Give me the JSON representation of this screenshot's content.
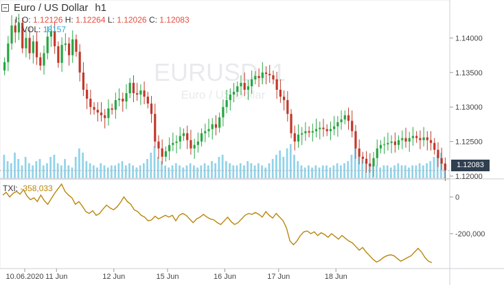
{
  "header": {
    "symbol_title": "Euro / US Dollar",
    "interval": "h1",
    "open_label": "O:",
    "open_value": "1.12126",
    "high_label": "H:",
    "high_value": "1.12264",
    "low_label": "L:",
    "low_value": "1.12026",
    "close_label": "C:",
    "close_value": "1.12083",
    "prefix": "I:",
    "volume_label": "VOL:",
    "volume_value": "18157"
  },
  "watermark": {
    "symbol": "EURUSD, 1",
    "name": "Euro / US Dollar"
  },
  "current_price_tag": "1.12083",
  "indicator": {
    "name": "TXI:",
    "value": "-358,033"
  },
  "colors": {
    "up": "#26a641",
    "down": "#c0392b",
    "volume": "#8fd3ea",
    "txi_line": "#b8860b",
    "price_tag_bg": "#2f3f4f"
  },
  "chart_data": [
    {
      "type": "candlestick",
      "title": "Euro / US Dollar, h1",
      "price_axis_ticks": [
        "1.14000",
        "1.13500",
        "1.13000",
        "1.12500",
        "1.12000"
      ],
      "price_axis_range": [
        1.1197,
        1.1455
      ],
      "x_tick_labels": [
        "10.06.2020",
        "11 Jun",
        "12 Jun",
        "15 Jun",
        "16 Jun",
        "17 Jun",
        "18 Jun"
      ],
      "close_series": [
        1.1365,
        1.1392,
        1.1418,
        1.1408,
        1.1422,
        1.1385,
        1.14,
        1.1378,
        1.1395,
        1.1372,
        1.136,
        1.1378,
        1.1402,
        1.141,
        1.1388,
        1.1364,
        1.139,
        1.1392,
        1.1375,
        1.1398,
        1.138,
        1.135,
        1.1325,
        1.1312,
        1.13,
        1.1296,
        1.1292,
        1.1288,
        1.1284,
        1.1298,
        1.1296,
        1.131,
        1.1312,
        1.1308,
        1.132,
        1.1335,
        1.132,
        1.1318,
        1.1324,
        1.1315,
        1.1305,
        1.129,
        1.125,
        1.124,
        1.1228,
        1.1236,
        1.1245,
        1.1248,
        1.125,
        1.1258,
        1.1262,
        1.1252,
        1.124,
        1.1245,
        1.125,
        1.1262,
        1.1265,
        1.1268,
        1.1275,
        1.127,
        1.1285,
        1.13,
        1.131,
        1.1318,
        1.1322,
        1.133,
        1.1335,
        1.1325,
        1.133,
        1.134,
        1.1345,
        1.1342,
        1.135,
        1.1348,
        1.1346,
        1.134,
        1.1325,
        1.1315,
        1.131,
        1.129,
        1.1262,
        1.125,
        1.126,
        1.1262,
        1.1265,
        1.1263,
        1.1265,
        1.1268,
        1.127,
        1.1268,
        1.1265,
        1.1268,
        1.1272,
        1.1278,
        1.1282,
        1.1288,
        1.128,
        1.1265,
        1.124,
        1.1228,
        1.1225,
        1.1218,
        1.1214,
        1.1226,
        1.124,
        1.1245,
        1.1246,
        1.1248,
        1.125,
        1.1245,
        1.1252,
        1.1255,
        1.125,
        1.1255,
        1.1258,
        1.1255,
        1.1252,
        1.1256,
        1.1252,
        1.1248,
        1.1238,
        1.1226,
        1.1218,
        1.1208
      ],
      "volume_series": [
        0.55,
        0.4,
        0.35,
        0.6,
        0.45,
        0.3,
        0.5,
        0.35,
        0.3,
        0.4,
        0.45,
        0.3,
        0.35,
        0.5,
        0.55,
        0.35,
        0.3,
        0.45,
        0.3,
        0.25,
        0.5,
        0.7,
        0.6,
        0.4,
        0.35,
        0.3,
        0.25,
        0.35,
        0.3,
        0.25,
        0.3,
        0.3,
        0.35,
        0.4,
        0.3,
        0.35,
        0.3,
        0.25,
        0.3,
        0.35,
        0.45,
        0.6,
        0.75,
        0.5,
        0.4,
        0.3,
        0.25,
        0.3,
        0.35,
        0.3,
        0.25,
        0.3,
        0.35,
        0.3,
        0.25,
        0.3,
        0.35,
        0.3,
        0.4,
        0.35,
        0.5,
        0.55,
        0.4,
        0.35,
        0.3,
        0.3,
        0.35,
        0.3,
        0.4,
        0.35,
        0.3,
        0.35,
        0.3,
        0.25,
        0.35,
        0.45,
        0.55,
        0.65,
        0.5,
        0.7,
        0.8,
        0.55,
        0.4,
        0.3,
        0.25,
        0.3,
        0.25,
        0.3,
        0.25,
        0.3,
        0.3,
        0.25,
        0.3,
        0.35,
        0.3,
        0.35,
        0.4,
        0.55,
        0.7,
        0.5,
        0.45,
        0.4,
        0.35,
        0.3,
        0.3,
        0.25,
        0.3,
        0.3,
        0.25,
        0.3,
        0.35,
        0.3,
        0.3,
        0.25,
        0.3,
        0.3,
        0.35,
        0.3,
        0.35,
        0.4,
        0.5,
        0.55,
        0.6,
        0.35
      ],
      "txi_axis_ticks": [
        "0",
        "-200,000"
      ],
      "txi_axis_range": [
        -390000,
        95000
      ],
      "txi_series": [
        10000,
        25000,
        0,
        20000,
        30000,
        15000,
        40000,
        5000,
        -15000,
        -5000,
        -25000,
        10000,
        -20000,
        -40000,
        -10000,
        20000,
        45000,
        70000,
        30000,
        10000,
        -5000,
        -40000,
        -25000,
        -50000,
        -80000,
        -90000,
        -75000,
        -100000,
        -90000,
        -65000,
        -45000,
        -60000,
        -70000,
        -55000,
        -30000,
        0,
        -25000,
        -40000,
        -70000,
        -80000,
        -100000,
        -110000,
        -130000,
        -125000,
        -105000,
        -120000,
        -110000,
        -100000,
        -110000,
        -100000,
        -130000,
        -100000,
        -90000,
        -100000,
        -120000,
        -140000,
        -120000,
        -110000,
        -95000,
        -110000,
        -120000,
        -125000,
        -140000,
        -150000,
        -130000,
        -110000,
        -135000,
        -150000,
        -140000,
        -120000,
        -100000,
        -90000,
        -95000,
        -85000,
        -95000,
        -110000,
        -80000,
        -100000,
        -115000,
        -90000,
        -110000,
        -130000,
        -170000,
        -240000,
        -260000,
        -240000,
        -210000,
        -190000,
        -185000,
        -200000,
        -190000,
        -210000,
        -195000,
        -205000,
        -220000,
        -200000,
        -215000,
        -230000,
        -210000,
        -225000,
        -240000,
        -250000,
        -270000,
        -290000,
        -275000,
        -300000,
        -320000,
        -340000,
        -355000,
        -345000,
        -330000,
        -320000,
        -315000,
        -320000,
        -335000,
        -350000,
        -340000,
        -330000,
        -320000,
        -300000,
        -280000,
        -300000,
        -330000,
        -350000,
        -358033
      ]
    }
  ]
}
